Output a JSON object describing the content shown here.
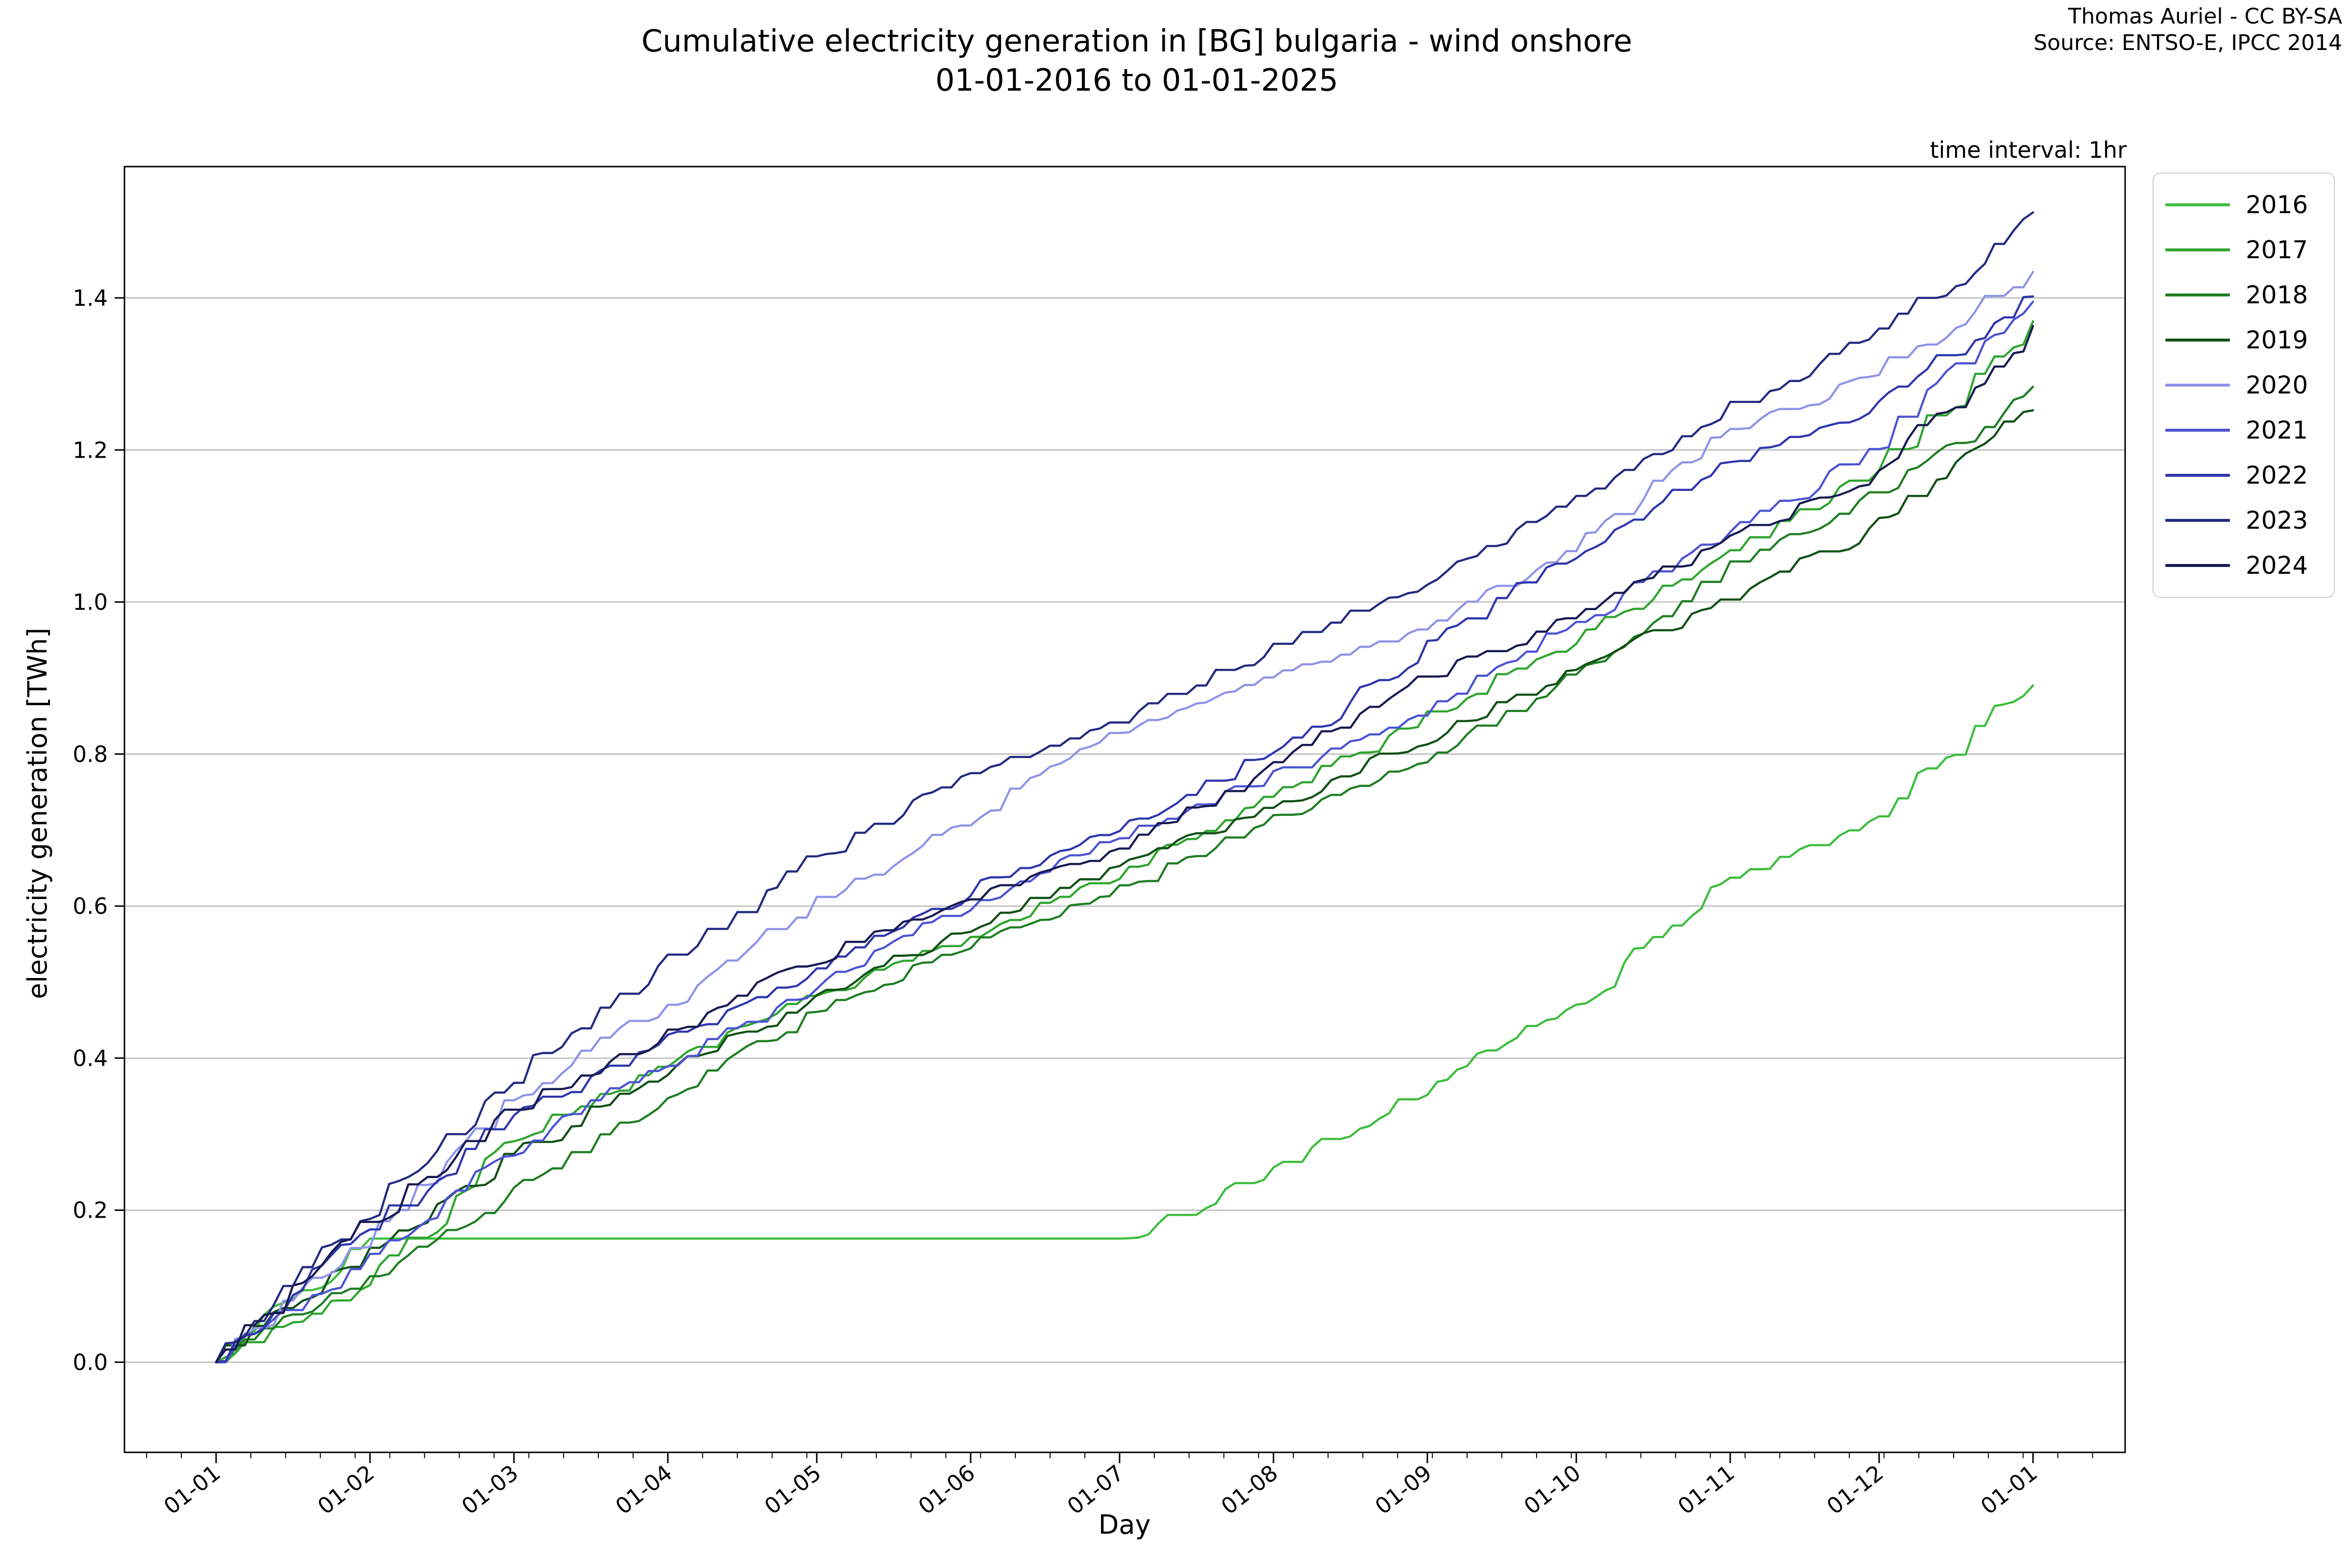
{
  "header": {
    "title_line1": "Cumulative electricity generation in [BG] bulgaria - wind onshore",
    "title_line2": "01-01-2016 to 01-01-2025",
    "attribution_line1": "Thomas Auriel - CC BY-SA",
    "attribution_line2": "Source: ENTSO-E, IPCC 2014",
    "time_interval_note": "time interval: 1hr"
  },
  "chart_data": {
    "type": "line",
    "title": "Cumulative electricity generation in [BG] bulgaria - wind onshore 01-01-2016 to 01-01-2025",
    "xlabel": "Day",
    "ylabel": "electricity generation [TWh]",
    "x_tick_labels": [
      "01-01",
      "01-02",
      "01-03",
      "01-04",
      "01-05",
      "01-06",
      "01-07",
      "01-08",
      "01-09",
      "01-10",
      "01-11",
      "01-12",
      "01-01"
    ],
    "x_tick_days": [
      0,
      31,
      60,
      91,
      121,
      152,
      182,
      213,
      244,
      274,
      305,
      335,
      366
    ],
    "y_ticks": [
      "0.0",
      "0.2",
      "0.4",
      "0.6",
      "0.8",
      "1.0",
      "1.2",
      "1.4"
    ],
    "y_tick_values": [
      0.0,
      0.2,
      0.4,
      0.6,
      0.8,
      1.0,
      1.2,
      1.4
    ],
    "ylim": [
      -0.12,
      1.57
    ],
    "xlim_days": [
      -18.5,
      384.5
    ],
    "grid": "horizontal",
    "grid_color": "#b3b3b3",
    "legend_position": "right",
    "minor_tick_interval_days": 7,
    "series": [
      {
        "name": "2016",
        "color": "#3dbd3d",
        "month_days": [
          0,
          31,
          60,
          91,
          121,
          152,
          182,
          213,
          244,
          274,
          305,
          335,
          366
        ],
        "values": [
          0.0,
          0.155,
          0.155,
          0.155,
          0.155,
          0.155,
          0.155,
          0.25,
          0.355,
          0.47,
          0.63,
          0.71,
          0.89
        ]
      },
      {
        "name": "2017",
        "color": "#2ea52e",
        "month_days": [
          0,
          31,
          60,
          91,
          121,
          152,
          182,
          213,
          244,
          274,
          305,
          335,
          366
        ],
        "values": [
          0.0,
          0.1,
          0.29,
          0.39,
          0.48,
          0.56,
          0.64,
          0.74,
          0.845,
          0.95,
          1.06,
          1.17,
          1.35
        ]
      },
      {
        "name": "2018",
        "color": "#1e7e22",
        "month_days": [
          0,
          31,
          60,
          91,
          121,
          152,
          182,
          213,
          244,
          274,
          305,
          335,
          366
        ],
        "values": [
          0.0,
          0.11,
          0.22,
          0.34,
          0.46,
          0.55,
          0.62,
          0.71,
          0.79,
          0.9,
          1.04,
          1.14,
          1.27
        ]
      },
      {
        "name": "2019",
        "color": "#115016",
        "month_days": [
          0,
          31,
          60,
          91,
          121,
          152,
          182,
          213,
          244,
          274,
          305,
          335,
          366
        ],
        "values": [
          0.0,
          0.14,
          0.27,
          0.38,
          0.48,
          0.57,
          0.65,
          0.73,
          0.82,
          0.91,
          1.0,
          1.1,
          1.25
        ]
      },
      {
        "name": "2020",
        "color": "#8f93e8",
        "month_days": [
          0,
          31,
          60,
          91,
          121,
          152,
          182,
          213,
          244,
          274,
          305,
          335,
          366
        ],
        "values": [
          0.0,
          0.155,
          0.34,
          0.47,
          0.6,
          0.71,
          0.83,
          0.9,
          0.965,
          1.07,
          1.22,
          1.3,
          1.43
        ]
      },
      {
        "name": "2021",
        "color": "#4b53d3",
        "month_days": [
          0,
          31,
          60,
          91,
          121,
          152,
          182,
          213,
          244,
          274,
          305,
          335,
          366
        ],
        "values": [
          0.0,
          0.13,
          0.28,
          0.39,
          0.49,
          0.6,
          0.69,
          0.77,
          0.85,
          0.97,
          1.09,
          1.2,
          1.39
        ]
      },
      {
        "name": "2022",
        "color": "#2f36ad",
        "month_days": [
          0,
          31,
          60,
          91,
          121,
          152,
          182,
          213,
          244,
          274,
          305,
          335,
          366
        ],
        "values": [
          0.0,
          0.17,
          0.32,
          0.42,
          0.51,
          0.62,
          0.7,
          0.8,
          0.94,
          1.06,
          1.18,
          1.26,
          1.4
        ]
      },
      {
        "name": "2023",
        "color": "#232a80",
        "month_days": [
          0,
          31,
          60,
          91,
          121,
          152,
          182,
          213,
          244,
          274,
          305,
          335,
          366
        ],
        "values": [
          0.0,
          0.2,
          0.37,
          0.52,
          0.66,
          0.77,
          0.84,
          0.94,
          1.02,
          1.13,
          1.25,
          1.35,
          1.5
        ]
      },
      {
        "name": "2024",
        "color": "#171a52",
        "month_days": [
          0,
          31,
          60,
          91,
          121,
          152,
          182,
          213,
          244,
          274,
          305,
          335,
          366
        ],
        "values": [
          0.0,
          0.18,
          0.33,
          0.43,
          0.53,
          0.61,
          0.67,
          0.78,
          0.9,
          0.98,
          1.08,
          1.17,
          1.35
        ]
      }
    ]
  },
  "legend": {
    "items": [
      {
        "label": "2016",
        "color": "#3dbd3d"
      },
      {
        "label": "2017",
        "color": "#2ea52e"
      },
      {
        "label": "2018",
        "color": "#1e7e22"
      },
      {
        "label": "2019",
        "color": "#115016"
      },
      {
        "label": "2020",
        "color": "#8f93e8"
      },
      {
        "label": "2021",
        "color": "#4b53d3"
      },
      {
        "label": "2022",
        "color": "#2f36ad"
      },
      {
        "label": "2023",
        "color": "#232a80"
      },
      {
        "label": "2024",
        "color": "#171a52"
      }
    ]
  }
}
